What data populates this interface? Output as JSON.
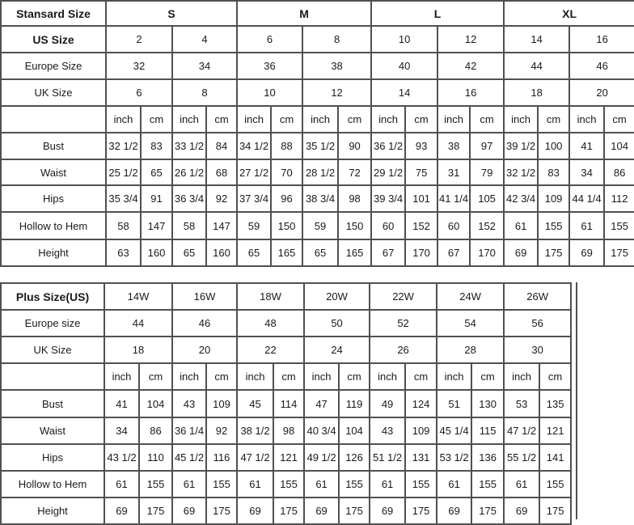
{
  "standard": {
    "header_label": "Stansard Size",
    "groups": [
      "S",
      "M",
      "L",
      "XL"
    ],
    "rows": [
      {
        "label": "US Size",
        "values": [
          "2",
          "4",
          "6",
          "8",
          "10",
          "12",
          "14",
          "16"
        ]
      },
      {
        "label": "Europe Size",
        "values": [
          "32",
          "34",
          "36",
          "38",
          "40",
          "42",
          "44",
          "46"
        ]
      },
      {
        "label": "UK Size",
        "values": [
          "6",
          "8",
          "10",
          "12",
          "14",
          "16",
          "18",
          "20"
        ]
      }
    ],
    "units": [
      "inch",
      "cm"
    ],
    "measurements": [
      {
        "label": "Bust",
        "values": [
          "32 1/2",
          "83",
          "33 1/2",
          "84",
          "34 1/2",
          "88",
          "35 1/2",
          "90",
          "36 1/2",
          "93",
          "38",
          "97",
          "39 1/2",
          "100",
          "41",
          "104"
        ]
      },
      {
        "label": "Waist",
        "values": [
          "25 1/2",
          "65",
          "26 1/2",
          "68",
          "27 1/2",
          "70",
          "28 1/2",
          "72",
          "29 1/2",
          "75",
          "31",
          "79",
          "32 1/2",
          "83",
          "34",
          "86"
        ]
      },
      {
        "label": "Hips",
        "values": [
          "35 3/4",
          "91",
          "36 3/4",
          "92",
          "37 3/4",
          "96",
          "38 3/4",
          "98",
          "39 3/4",
          "101",
          "41 1/4",
          "105",
          "42 3/4",
          "109",
          "44 1/4",
          "112"
        ]
      },
      {
        "label": "Hollow to Hem",
        "values": [
          "58",
          "147",
          "58",
          "147",
          "59",
          "150",
          "59",
          "150",
          "60",
          "152",
          "60",
          "152",
          "61",
          "155",
          "61",
          "155"
        ]
      },
      {
        "label": "Height",
        "values": [
          "63",
          "160",
          "65",
          "160",
          "65",
          "165",
          "65",
          "165",
          "67",
          "170",
          "67",
          "170",
          "69",
          "175",
          "69",
          "175"
        ]
      }
    ]
  },
  "plus": {
    "header_label": "Plus Size(US)",
    "sizes": [
      "14W",
      "16W",
      "18W",
      "20W",
      "22W",
      "24W",
      "26W"
    ],
    "rows": [
      {
        "label": "Europe size",
        "values": [
          "44",
          "46",
          "48",
          "50",
          "52",
          "54",
          "56"
        ]
      },
      {
        "label": "UK Size",
        "values": [
          "18",
          "20",
          "22",
          "24",
          "26",
          "28",
          "30"
        ]
      }
    ],
    "units": [
      "inch",
      "cm"
    ],
    "measurements": [
      {
        "label": "Bust",
        "values": [
          "41",
          "104",
          "43",
          "109",
          "45",
          "114",
          "47",
          "119",
          "49",
          "124",
          "51",
          "130",
          "53",
          "135"
        ]
      },
      {
        "label": "Waist",
        "values": [
          "34",
          "86",
          "36 1/4",
          "92",
          "38 1/2",
          "98",
          "40 3/4",
          "104",
          "43",
          "109",
          "45 1/4",
          "115",
          "47 1/2",
          "121"
        ]
      },
      {
        "label": "Hips",
        "values": [
          "43 1/2",
          "110",
          "45 1/2",
          "116",
          "47 1/2",
          "121",
          "49 1/2",
          "126",
          "51 1/2",
          "131",
          "53 1/2",
          "136",
          "55 1/2",
          "141"
        ]
      },
      {
        "label": "Hollow to Hem",
        "values": [
          "61",
          "155",
          "61",
          "155",
          "61",
          "155",
          "61",
          "155",
          "61",
          "155",
          "61",
          "155",
          "61",
          "155"
        ]
      },
      {
        "label": "Height",
        "values": [
          "69",
          "175",
          "69",
          "175",
          "69",
          "175",
          "69",
          "175",
          "69",
          "175",
          "69",
          "175",
          "69",
          "175"
        ]
      }
    ]
  }
}
